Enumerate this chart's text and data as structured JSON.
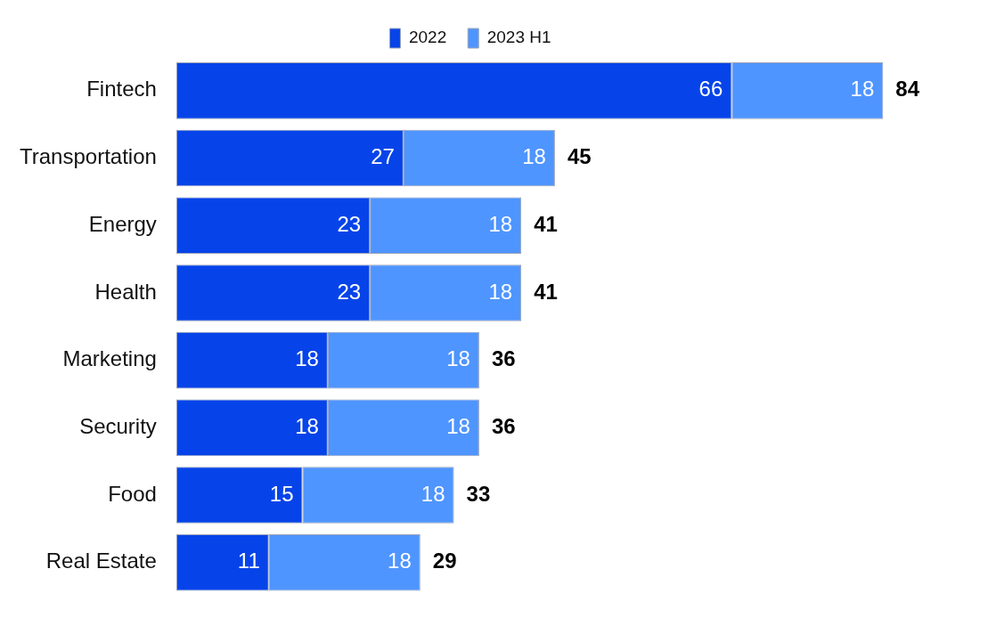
{
  "chart_data": {
    "type": "bar",
    "orientation": "horizontal",
    "stacked": true,
    "legend": "top",
    "data_labels": true,
    "categories": [
      "Fintech",
      "Transportation",
      "Energy",
      "Health",
      "Marketing",
      "Security",
      "Food",
      "Real Estate"
    ],
    "series": [
      {
        "name": "2022",
        "color": "#0644e9",
        "values": [
          66,
          27,
          23,
          23,
          18,
          18,
          15,
          11
        ]
      },
      {
        "name": "2023 H1",
        "color": "#4f95ff",
        "values": [
          18,
          18,
          18,
          18,
          18,
          18,
          18,
          18
        ]
      }
    ],
    "totals": [
      "84",
      "45",
      "41",
      "41",
      "36",
      "36",
      "33",
      "29"
    ]
  }
}
